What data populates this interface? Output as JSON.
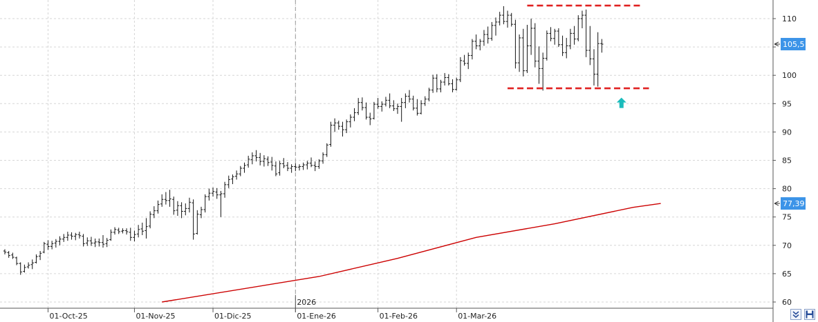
{
  "chart_data": {
    "type": "ohlc",
    "title": "",
    "xlabel": "",
    "ylabel": "",
    "ylim": [
      59.5,
      112.5
    ],
    "y_ticks": [
      60,
      65,
      70,
      75,
      80,
      85,
      90,
      95,
      100,
      105,
      110
    ],
    "date_labels": [
      {
        "label": "01-Oct-25",
        "bar": 11
      },
      {
        "label": "01-Nov-25",
        "bar": 33
      },
      {
        "label": "01-Dic-25",
        "bar": 53
      },
      {
        "label": "01-Ene-26",
        "bar": 74
      },
      {
        "label": "01-Feb-26",
        "bar": 95
      },
      {
        "label": "01-Mar-26",
        "bar": 115
      }
    ],
    "year_label": {
      "label": "2026",
      "bar": 74
    },
    "price_series": {
      "name": "",
      "ohlc": [
        [
          69.0,
          69.3,
          68.4,
          68.8
        ],
        [
          68.7,
          69.0,
          67.8,
          68.2
        ],
        [
          68.3,
          68.7,
          67.6,
          67.9
        ],
        [
          67.8,
          68.0,
          66.5,
          66.8
        ],
        [
          66.8,
          67.0,
          64.8,
          65.3
        ],
        [
          65.4,
          66.6,
          65.2,
          66.1
        ],
        [
          66.2,
          67.0,
          65.9,
          66.5
        ],
        [
          66.6,
          67.5,
          65.8,
          66.9
        ],
        [
          67.0,
          68.4,
          66.8,
          68.0
        ],
        [
          68.1,
          69.0,
          67.4,
          68.6
        ],
        [
          68.8,
          70.6,
          68.6,
          70.3
        ],
        [
          70.2,
          70.9,
          69.2,
          69.8
        ],
        [
          69.8,
          70.8,
          69.3,
          70.3
        ],
        [
          70.4,
          71.1,
          69.6,
          70.7
        ],
        [
          70.7,
          71.6,
          70.0,
          71.1
        ],
        [
          71.1,
          72.0,
          70.6,
          71.4
        ],
        [
          71.4,
          72.4,
          70.8,
          71.8
        ],
        [
          71.8,
          72.3,
          71.0,
          71.6
        ],
        [
          71.6,
          72.2,
          70.9,
          71.9
        ],
        [
          71.9,
          72.4,
          71.2,
          71.7
        ],
        [
          71.6,
          72.0,
          69.8,
          70.3
        ],
        [
          70.4,
          71.4,
          69.9,
          70.8
        ],
        [
          70.8,
          71.5,
          69.9,
          70.4
        ],
        [
          70.4,
          71.2,
          69.7,
          70.6
        ],
        [
          70.6,
          71.2,
          69.8,
          70.5
        ],
        [
          70.5,
          71.8,
          69.6,
          70.2
        ],
        [
          70.3,
          71.3,
          69.7,
          70.9
        ],
        [
          71.0,
          72.8,
          70.8,
          72.3
        ],
        [
          72.3,
          73.2,
          71.9,
          72.8
        ],
        [
          72.7,
          73.1,
          72.0,
          72.4
        ],
        [
          72.5,
          73.0,
          72.1,
          72.6
        ],
        [
          72.6,
          73.0,
          71.9,
          72.4
        ],
        [
          72.3,
          73.1,
          70.8,
          71.4
        ],
        [
          71.4,
          72.6,
          70.7,
          71.9
        ],
        [
          72.0,
          73.6,
          71.4,
          72.8
        ],
        [
          72.9,
          74.0,
          71.8,
          72.5
        ],
        [
          72.6,
          74.8,
          71.2,
          73.3
        ],
        [
          73.4,
          76.0,
          73.0,
          75.5
        ],
        [
          75.4,
          76.9,
          74.8,
          76.1
        ],
        [
          76.1,
          77.9,
          75.6,
          77.2
        ],
        [
          77.3,
          79.0,
          76.8,
          78.1
        ],
        [
          78.1,
          79.4,
          77.2,
          77.9
        ],
        [
          77.9,
          79.8,
          76.8,
          78.2
        ],
        [
          78.1,
          78.6,
          75.4,
          76.1
        ],
        [
          76.2,
          77.8,
          75.2,
          77.0
        ],
        [
          77.0,
          77.6,
          74.8,
          76.0
        ],
        [
          76.0,
          77.4,
          75.3,
          76.5
        ],
        [
          76.5,
          78.4,
          75.8,
          77.6
        ],
        [
          77.5,
          78.1,
          71.0,
          72.0
        ],
        [
          72.1,
          76.2,
          71.9,
          75.5
        ],
        [
          75.4,
          76.8,
          74.8,
          76.3
        ],
        [
          76.3,
          79.0,
          75.8,
          78.6
        ],
        [
          78.6,
          80.0,
          77.9,
          79.2
        ],
        [
          79.2,
          80.2,
          78.6,
          79.5
        ],
        [
          79.4,
          80.1,
          78.2,
          78.9
        ],
        [
          78.9,
          79.6,
          75.0,
          79.1
        ],
        [
          79.1,
          81.2,
          78.4,
          80.7
        ],
        [
          80.7,
          82.3,
          80.1,
          81.6
        ],
        [
          81.7,
          82.5,
          80.8,
          82.1
        ],
        [
          82.2,
          83.2,
          81.6,
          82.6
        ],
        [
          82.6,
          84.0,
          82.2,
          83.6
        ],
        [
          83.6,
          84.6,
          82.8,
          84.1
        ],
        [
          84.2,
          85.8,
          83.7,
          85.2
        ],
        [
          85.1,
          86.4,
          84.3,
          85.8
        ],
        [
          85.8,
          86.8,
          84.8,
          85.5
        ],
        [
          85.5,
          86.3,
          84.1,
          84.8
        ],
        [
          84.8,
          85.9,
          83.9,
          85.3
        ],
        [
          85.2,
          85.7,
          84.0,
          84.6
        ],
        [
          84.7,
          85.6,
          83.2,
          84.1
        ],
        [
          84.0,
          84.8,
          82.2,
          82.6
        ],
        [
          82.8,
          84.9,
          82.3,
          84.4
        ],
        [
          84.4,
          85.4,
          83.6,
          84.0
        ],
        [
          84.1,
          84.7,
          83.1,
          83.6
        ],
        [
          83.6,
          84.3,
          82.8,
          83.9
        ],
        [
          83.9,
          84.5,
          83.1,
          83.8
        ],
        [
          83.8,
          84.3,
          83.2,
          83.9
        ],
        [
          83.9,
          84.6,
          83.3,
          84.2
        ],
        [
          84.2,
          84.9,
          83.4,
          84.5
        ],
        [
          84.5,
          85.5,
          83.8,
          84.1
        ],
        [
          84.1,
          84.8,
          83.1,
          83.9
        ],
        [
          83.9,
          85.2,
          83.5,
          84.9
        ],
        [
          84.9,
          86.4,
          84.4,
          86.0
        ],
        [
          86.0,
          88.0,
          85.6,
          87.7
        ],
        [
          87.8,
          91.8,
          87.4,
          91.2
        ],
        [
          91.2,
          92.4,
          90.0,
          91.6
        ],
        [
          91.6,
          92.0,
          90.4,
          91.0
        ],
        [
          91.0,
          91.8,
          89.2,
          90.4
        ],
        [
          90.4,
          92.2,
          89.8,
          91.8
        ],
        [
          91.8,
          93.1,
          90.8,
          92.6
        ],
        [
          92.6,
          94.2,
          91.9,
          93.4
        ],
        [
          93.4,
          96.0,
          93.0,
          95.2
        ],
        [
          95.2,
          96.1,
          93.8,
          94.3
        ],
        [
          94.3,
          95.2,
          92.2,
          92.6
        ],
        [
          92.6,
          93.4,
          91.2,
          92.3
        ],
        [
          92.4,
          95.3,
          92.2,
          94.9
        ],
        [
          94.9,
          96.0,
          94.1,
          94.5
        ],
        [
          94.5,
          95.4,
          93.6,
          94.9
        ],
        [
          94.9,
          96.2,
          94.5,
          95.6
        ],
        [
          95.6,
          96.8,
          94.2,
          94.6
        ],
        [
          94.6,
          95.6,
          93.7,
          94.1
        ],
        [
          94.1,
          95.0,
          93.2,
          94.5
        ],
        [
          94.5,
          96.0,
          91.8,
          95.2
        ],
        [
          95.2,
          96.8,
          94.2,
          96.3
        ],
        [
          96.3,
          97.4,
          95.2,
          95.8
        ],
        [
          95.8,
          96.4,
          93.8,
          94.2
        ],
        [
          94.2,
          95.8,
          92.9,
          93.3
        ],
        [
          93.3,
          95.6,
          93.1,
          95.0
        ],
        [
          95.0,
          96.3,
          94.6,
          95.8
        ],
        [
          95.8,
          97.8,
          95.4,
          97.4
        ],
        [
          97.4,
          100.1,
          96.9,
          99.5
        ],
        [
          99.5,
          100.2,
          97.0,
          97.6
        ],
        [
          97.6,
          99.2,
          97.0,
          98.8
        ],
        [
          98.8,
          100.4,
          98.2,
          99.6
        ],
        [
          99.6,
          100.2,
          98.2,
          98.5
        ],
        [
          98.5,
          99.3,
          97.0,
          97.5
        ],
        [
          97.5,
          99.6,
          97.3,
          99.2
        ],
        [
          99.2,
          103.2,
          98.8,
          102.6
        ],
        [
          102.5,
          103.6,
          101.7,
          102.1
        ],
        [
          102.1,
          104.0,
          101.1,
          103.5
        ],
        [
          103.5,
          106.4,
          102.8,
          106.0
        ],
        [
          106.0,
          107.2,
          104.6,
          105.2
        ],
        [
          105.2,
          106.4,
          104.4,
          106.0
        ],
        [
          106.0,
          108.0,
          105.2,
          107.2
        ],
        [
          107.2,
          108.6,
          105.6,
          106.5
        ],
        [
          106.5,
          109.4,
          106.1,
          108.8
        ],
        [
          108.8,
          110.2,
          107.0,
          109.4
        ],
        [
          109.4,
          111.2,
          108.8,
          110.6
        ],
        [
          110.6,
          112.2,
          109.0,
          109.5
        ],
        [
          109.5,
          111.4,
          108.4,
          110.6
        ],
        [
          110.6,
          111.0,
          108.6,
          109.0
        ],
        [
          109.0,
          109.8,
          101.2,
          102.2
        ],
        [
          102.2,
          107.2,
          100.6,
          106.6
        ],
        [
          106.6,
          108.2,
          99.8,
          100.8
        ],
        [
          100.8,
          108.9,
          100.4,
          105.2
        ],
        [
          105.2,
          110.0,
          103.6,
          108.3
        ],
        [
          108.3,
          109.2,
          101.4,
          102.5
        ],
        [
          102.5,
          105.1,
          98.5,
          101.2
        ],
        [
          101.2,
          104.0,
          97.3,
          103.0
        ],
        [
          103.0,
          107.9,
          102.6,
          107.4
        ],
        [
          107.4,
          108.5,
          106.0,
          106.5
        ],
        [
          106.5,
          108.2,
          105.4,
          107.8
        ],
        [
          107.8,
          108.3,
          105.0,
          105.4
        ],
        [
          105.4,
          107.0,
          103.4,
          104.0
        ],
        [
          104.0,
          106.6,
          103.0,
          105.2
        ],
        [
          105.2,
          108.2,
          104.6,
          107.4
        ],
        [
          107.4,
          108.7,
          105.4,
          106.4
        ],
        [
          106.4,
          110.6,
          106.0,
          110.0
        ],
        [
          110.0,
          111.4,
          108.3,
          110.6
        ],
        [
          110.6,
          111.6,
          103.2,
          104.4
        ],
        [
          104.4,
          108.7,
          101.8,
          102.9
        ],
        [
          102.9,
          104.6,
          98.2,
          100.2
        ],
        [
          100.2,
          107.6,
          98.0,
          105.6
        ],
        [
          105.6,
          106.4,
          104.0,
          105.5
        ]
      ]
    },
    "moving_average": {
      "name": "",
      "points": [
        [
          40,
          60.0
        ],
        [
          80,
          64.5
        ],
        [
          100,
          67.7
        ],
        [
          120,
          71.4
        ],
        [
          140,
          73.8
        ],
        [
          160,
          76.7
        ],
        [
          167,
          77.39
        ]
      ],
      "color": "#cc0000"
    },
    "last_price_badge": {
      "value": "105,5",
      "color": "#3c94e8"
    },
    "ma_badge": {
      "value": "77,39",
      "color": "#3c94e8"
    },
    "resistance_line": {
      "value": 112.3,
      "from_bar": 133,
      "to_bar": 162,
      "color": "#e02020",
      "style": "dashed"
    },
    "support_line": {
      "value": 97.7,
      "from_bar": 128,
      "to_bar": 164,
      "color": "#e02020",
      "style": "dashed"
    },
    "arrow_marker": {
      "bar": 157,
      "value": 95.2,
      "direction": "up",
      "color": "#1bbcbc"
    },
    "grid": true,
    "bar_color": "#111111"
  },
  "ui": {
    "expand_icon": "double-chevron-down-icon",
    "save_icon": "floppy-disk-icon"
  }
}
